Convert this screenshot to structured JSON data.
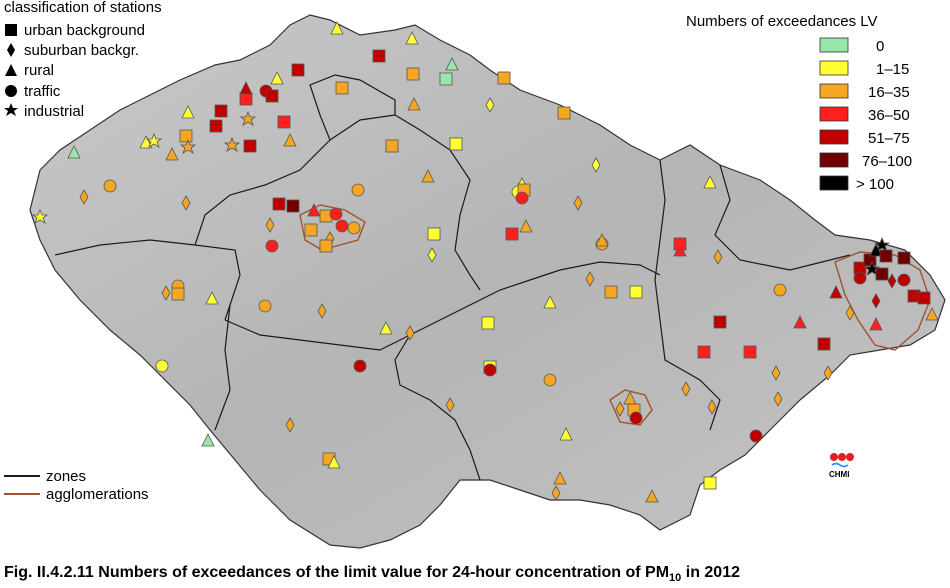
{
  "station_legend": {
    "title": "classification of stations",
    "items": [
      {
        "label": "urban background",
        "icon": "square"
      },
      {
        "label": "suburban backgr.",
        "icon": "diamond"
      },
      {
        "label": "rural",
        "icon": "triangle"
      },
      {
        "label": "traffic",
        "icon": "circle"
      },
      {
        "label": "industrial",
        "icon": "star"
      }
    ]
  },
  "exceedance_legend": {
    "title": "Numbers of exceedances LV",
    "classes": [
      {
        "label": "0",
        "color": "#99e6a8"
      },
      {
        "label": "1–15",
        "color": "#ffff33"
      },
      {
        "label": "16–35",
        "color": "#f5a623"
      },
      {
        "label": "36–50",
        "color": "#ff1f1f"
      },
      {
        "label": "51–75",
        "color": "#c00000"
      },
      {
        "label": "76–100",
        "color": "#700000"
      },
      {
        "label": "> 100",
        "color": "#000000"
      }
    ]
  },
  "boundary_legend": {
    "zones_label": "zones",
    "zones_color": "#1a1a1a",
    "agglomerations_label": "agglomerations",
    "agglomerations_color": "#a0522d"
  },
  "logo": {
    "text": "CHMI"
  },
  "caption": {
    "prefix": "Fig. II.4.2.11  Numbers of exceedances of the limit value for 24-hour concentration of PM",
    "subscript": "10",
    "suffix": " in 2012"
  }
}
